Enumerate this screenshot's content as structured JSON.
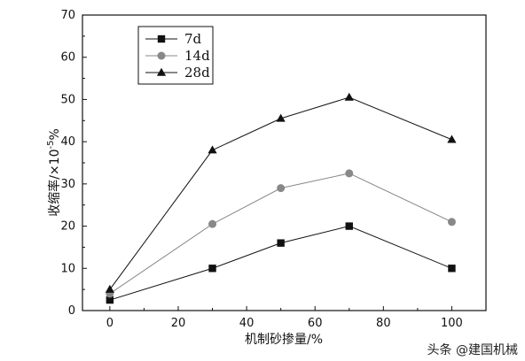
{
  "chart_data": {
    "type": "line",
    "title": "",
    "xlabel": "机制砂掺量/%",
    "ylabel": "收缩率/×10",
    "ylabel_exponent": "-5",
    "ylabel_suffix": "%",
    "xlim": [
      -8,
      110
    ],
    "ylim": [
      0,
      70
    ],
    "xticks": [
      0,
      20,
      40,
      60,
      80,
      100
    ],
    "yticks": [
      0,
      10,
      20,
      30,
      40,
      50,
      60,
      70
    ],
    "grid": false,
    "legend_position": "top-left",
    "x": [
      0,
      30,
      50,
      70,
      100
    ],
    "series": [
      {
        "name": "7d",
        "marker": "square",
        "color": "#111111",
        "values": [
          2.5,
          10,
          16,
          20,
          10
        ]
      },
      {
        "name": "14d",
        "marker": "circle",
        "color": "#888888",
        "values": [
          4,
          20.5,
          29,
          32.5,
          21
        ]
      },
      {
        "name": "28d",
        "marker": "triangle",
        "color": "#111111",
        "values": [
          5,
          38,
          45.5,
          50.5,
          40.5
        ]
      }
    ]
  },
  "watermark": {
    "text": "头条 @建国机械"
  }
}
